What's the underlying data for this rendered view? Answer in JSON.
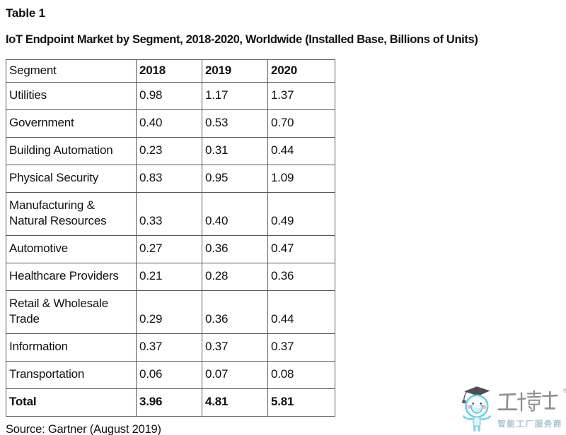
{
  "page": {
    "table_label": "Table 1",
    "title": "IoT Endpoint Market by Segment, 2018-2020, Worldwide (Installed Base, Billions of Units)",
    "source": "Source: Gartner (August 2019)"
  },
  "table": {
    "columns": [
      "Segment",
      "2018",
      "2019",
      "2020"
    ],
    "rows": [
      {
        "segment": "Utilities",
        "values": [
          "0.98",
          "1.17",
          "1.37"
        ],
        "is_total": false
      },
      {
        "segment": "Government",
        "values": [
          "0.40",
          "0.53",
          "0.70"
        ],
        "is_total": false
      },
      {
        "segment": "Building Automation",
        "values": [
          "0.23",
          "0.31",
          "0.44"
        ],
        "is_total": false
      },
      {
        "segment": "Physical Security",
        "values": [
          "0.83",
          "0.95",
          "1.09"
        ],
        "is_total": false
      },
      {
        "segment": "Manufacturing & Natural Resources",
        "values": [
          "0.33",
          "0.40",
          "0.49"
        ],
        "is_total": false
      },
      {
        "segment": "Automotive",
        "values": [
          "0.27",
          "0.36",
          "0.47"
        ],
        "is_total": false
      },
      {
        "segment": "Healthcare Providers",
        "values": [
          "0.21",
          "0.28",
          "0.36"
        ],
        "is_total": false
      },
      {
        "segment": "Retail & Wholesale Trade",
        "values": [
          "0.29",
          "0.36",
          "0.44"
        ],
        "is_total": false
      },
      {
        "segment": "Information",
        "values": [
          "0.37",
          "0.37",
          "0.37"
        ],
        "is_total": false
      },
      {
        "segment": "Transportation",
        "values": [
          "0.06",
          "0.07",
          "0.08"
        ],
        "is_total": false
      },
      {
        "segment": "Total",
        "values": [
          "3.96",
          "4.81",
          "5.81"
        ],
        "is_total": true
      }
    ]
  },
  "watermark": {
    "brand": "工博士",
    "registered_mark": "®",
    "tagline": "智能工厂服务商",
    "brand_color": "#87878d",
    "tagline_color": "#a3bfca",
    "mascot": "graduate-mascot"
  },
  "colors": {
    "text": "#111111",
    "border": "#595959",
    "background": "#ffffff",
    "mascot_blue": "#5ec9de",
    "mascot_cheek_pink": "#f7b3c0",
    "cap_dark": "#3f3f45"
  }
}
